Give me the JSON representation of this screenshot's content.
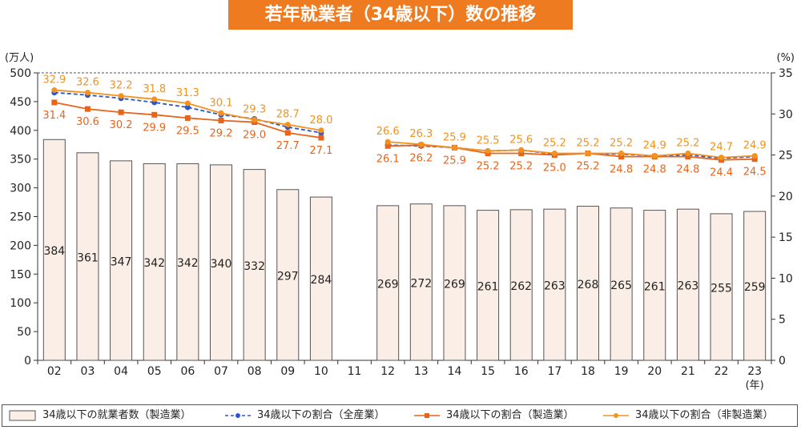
{
  "title": "若年就業者（34歳以下）数の推移",
  "colors": {
    "title_bg": "#ee7b1f",
    "bar_fill": "#fbeee6",
    "bar_stroke": "#555555",
    "all_industry": "#2f56c8",
    "manufacturing": "#e9641b",
    "non_manufacturing": "#f3921d"
  },
  "chart_data": {
    "type": "bar+line",
    "title": "若年就業者（34歳以下）数の推移",
    "categories": [
      "02",
      "03",
      "04",
      "05",
      "06",
      "07",
      "08",
      "09",
      "10",
      "11",
      "12",
      "13",
      "14",
      "15",
      "16",
      "17",
      "18",
      "19",
      "20",
      "21",
      "22",
      "23"
    ],
    "xlabel_unit": "(年)",
    "ylabel_left": "(万人)",
    "ylabel_right": "(%)",
    "ylim_left": [
      0,
      500
    ],
    "yticks_left": [
      0,
      50,
      100,
      150,
      200,
      250,
      300,
      350,
      400,
      450,
      500
    ],
    "ylim_right": [
      0,
      35
    ],
    "yticks_right": [
      0,
      5,
      10,
      15,
      20,
      25,
      30,
      35
    ],
    "bars": {
      "name": "34歳以下の就業者数（製造業）",
      "values": [
        384,
        361,
        347,
        342,
        342,
        340,
        332,
        297,
        284,
        null,
        269,
        272,
        269,
        261,
        262,
        263,
        268,
        265,
        261,
        263,
        255,
        259
      ]
    },
    "lines": [
      {
        "name": "34歳以下の割合（全産業）",
        "style": "dashed",
        "values": [
          32.6,
          32.3,
          31.9,
          31.4,
          30.8,
          29.9,
          29.4,
          28.4,
          27.7,
          null,
          26.2,
          26.1,
          25.9,
          25.5,
          25.6,
          25.1,
          25.2,
          25.1,
          24.9,
          25.0,
          24.6,
          24.8
        ]
      },
      {
        "name": "34歳以下の割合（製造業）",
        "style": "solid",
        "labels_below": true,
        "values": [
          31.4,
          30.6,
          30.2,
          29.9,
          29.5,
          29.2,
          29.0,
          27.7,
          27.1,
          null,
          26.1,
          26.2,
          25.9,
          25.2,
          25.2,
          25.0,
          25.2,
          24.8,
          24.8,
          24.8,
          24.4,
          24.5
        ]
      },
      {
        "name": "34歳以下の割合（非製造業）",
        "style": "solid",
        "labels_above": true,
        "values": [
          32.9,
          32.6,
          32.2,
          31.8,
          31.3,
          30.1,
          29.3,
          28.7,
          28.0,
          null,
          26.6,
          26.3,
          25.9,
          25.5,
          25.6,
          25.2,
          25.2,
          25.2,
          24.9,
          25.2,
          24.7,
          24.9
        ]
      }
    ],
    "legend_position": "bottom",
    "grid": false
  },
  "legend": {
    "bars": "34歳以下の就業者数（製造業）",
    "all_industry": "34歳以下の割合（全産業）",
    "manufacturing": "34歳以下の割合（製造業）",
    "non_manufacturing": "34歳以下の割合（非製造業）"
  }
}
